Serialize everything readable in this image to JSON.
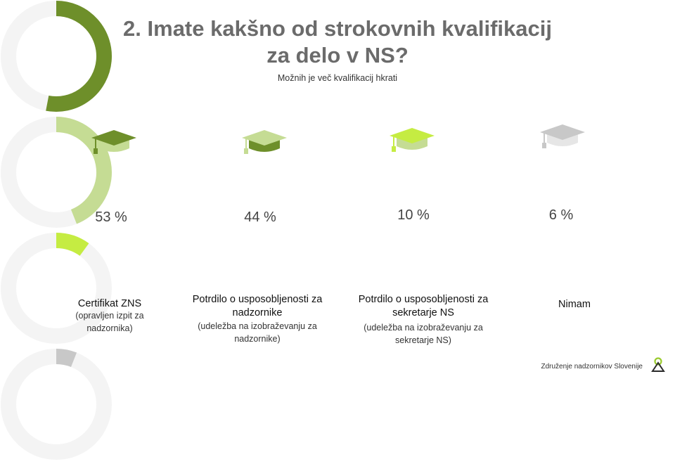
{
  "title_line1": "2. Imate kakšno od strokovnih kvalifikacij",
  "title_line2": "za delo v NS?",
  "subtitle": "Možnih je več kvalifikacij hkrati",
  "footer": "Združenje nadzornikov Slovenije",
  "colors": {
    "track": "#f4f4f4",
    "series": [
      "#6e8f2a",
      "#c5dc94",
      "#c5ec42",
      "#c8c8c8"
    ],
    "cap_secondary": [
      "#c5dc94",
      "#6e8f2a",
      "#c5dc94",
      "#e6e6e6"
    ]
  },
  "chart_data": {
    "type": "pie",
    "categories": [
      "Certifikat ZNS",
      "Potrdilo o usposobljenosti za nadzornike",
      "Potrdilo o usposobljenosti za sekretarje NS",
      "Nimam"
    ],
    "values": [
      53,
      44,
      10,
      6
    ],
    "unit": "%",
    "items": [
      {
        "value": 53,
        "value_label": "53 %",
        "label": "Certifikat ZNS",
        "sublabel": "(opravljen izpit za nadzornika)"
      },
      {
        "value": 44,
        "value_label": "44 %",
        "label": "Potrdilo o usposobljenosti za nadzornike",
        "sublabel": "(udeležba na izobraževanju za nadzornike)"
      },
      {
        "value": 10,
        "value_label": "10 %",
        "label": "Potrdilo o usposobljenosti za sekretarje NS",
        "sublabel": "(udeležba na izobraževanju za sekretarje NS)"
      },
      {
        "value": 6,
        "value_label": "6 %",
        "label": "Nimam",
        "sublabel": ""
      }
    ]
  }
}
